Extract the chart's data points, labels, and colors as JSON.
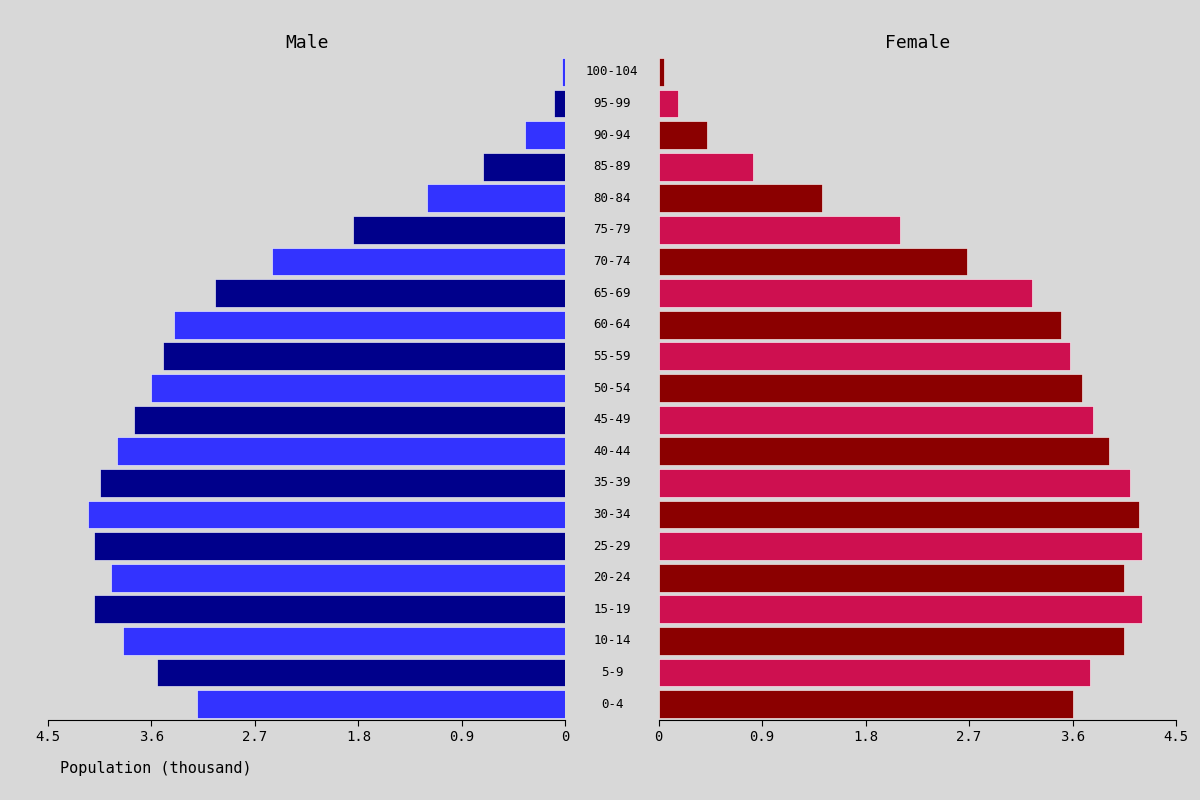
{
  "age_groups": [
    "0-4",
    "5-9",
    "10-14",
    "15-19",
    "20-24",
    "25-29",
    "30-34",
    "35-39",
    "40-44",
    "45-49",
    "50-54",
    "55-59",
    "60-64",
    "65-69",
    "70-74",
    "75-79",
    "80-84",
    "85-89",
    "90-94",
    "95-99",
    "100-104"
  ],
  "male": [
    3.2,
    3.55,
    3.85,
    4.1,
    3.95,
    4.1,
    4.15,
    4.05,
    3.9,
    3.75,
    3.6,
    3.5,
    3.4,
    3.05,
    2.55,
    1.85,
    1.2,
    0.72,
    0.35,
    0.1,
    0.03
  ],
  "female": [
    3.6,
    3.75,
    4.05,
    4.2,
    4.05,
    4.2,
    4.18,
    4.1,
    3.92,
    3.78,
    3.68,
    3.58,
    3.5,
    3.25,
    2.68,
    2.1,
    1.42,
    0.82,
    0.42,
    0.17,
    0.05
  ],
  "male_color_light": "#3333FF",
  "male_color_dark": "#00008B",
  "female_color_light": "#CE1050",
  "female_color_dark": "#8B0000",
  "background_color": "#D8D8D8",
  "xlim": 4.5,
  "xticks": [
    0,
    0.9,
    1.8,
    2.7,
    3.6,
    4.5
  ],
  "xlabel": "Population (thousand)",
  "male_label": "Male",
  "female_label": "Female",
  "title_fontsize": 13,
  "label_fontsize": 11,
  "tick_fontsize": 10,
  "age_label_fontsize": 9
}
